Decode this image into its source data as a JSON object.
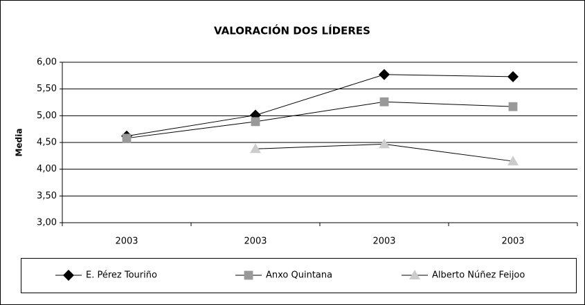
{
  "chart_data": {
    "type": "line",
    "title": "VALORACIÓN DOS LÍDERES",
    "y_label": "Media",
    "categories": [
      "2003",
      "2003",
      "2003",
      "2003"
    ],
    "series": [
      {
        "name": "E. Pérez Touriño",
        "color": "#000000",
        "marker": "diamond",
        "values": [
          4.62,
          5.01,
          5.77,
          5.73
        ]
      },
      {
        "name": "Anxo Quintana",
        "color": "#999999",
        "marker": "square",
        "values": [
          4.58,
          4.89,
          5.26,
          5.17
        ]
      },
      {
        "name": "Alberto Núñez Feijoo",
        "color": "#cccccc",
        "marker": "triangle",
        "values": [
          null,
          4.38,
          4.47,
          4.15
        ]
      }
    ],
    "ylim": [
      3,
      6
    ],
    "yticks": [
      {
        "value": 3,
        "label": "3,00"
      },
      {
        "value": 3.5,
        "label": "3,50"
      },
      {
        "value": 4,
        "label": "4,00"
      },
      {
        "value": 4.5,
        "label": "4,50"
      },
      {
        "value": 5,
        "label": "5,00"
      },
      {
        "value": 5.5,
        "label": "5,50"
      },
      {
        "value": 6,
        "label": "6,00"
      }
    ],
    "grid": true,
    "legend": "bottom"
  }
}
